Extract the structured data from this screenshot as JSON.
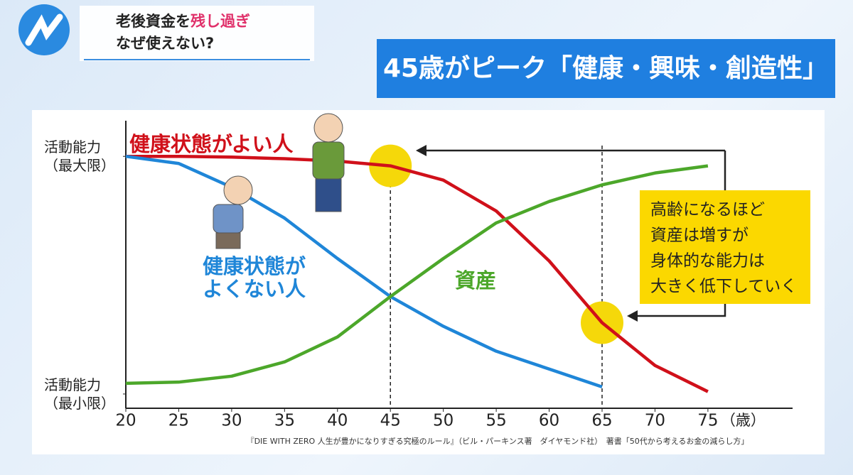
{
  "header": {
    "title_parts": [
      "老後資金を",
      "残し過ぎ"
    ],
    "title_line2": "なぜ使えない?"
  },
  "chart_data": {
    "type": "line",
    "title": "45歳がピーク「健康・興味・創造性」",
    "x": [
      20,
      25,
      30,
      35,
      40,
      45,
      50,
      55,
      60,
      65,
      70,
      75
    ],
    "xlim": [
      20,
      83
    ],
    "xticks": [
      20,
      25,
      30,
      35,
      40,
      45,
      50,
      55,
      60,
      65,
      70,
      75
    ],
    "x_unit": "（歳）",
    "ylim": [
      -6,
      115
    ],
    "yticks": [
      {
        "value": 0,
        "label": "活動能力（最小限）"
      },
      {
        "value": 100,
        "label": "活動能力（最大限）"
      }
    ],
    "series": [
      {
        "name": "健康状態がよい人",
        "color": "#d0101a",
        "values": [
          100,
          100,
          99.7,
          99,
          98,
          96,
          90,
          77,
          56,
          30,
          12,
          1
        ]
      },
      {
        "name": "健康状態がよくない人",
        "color": "#1f86d8",
        "values": [
          100,
          97,
          87,
          74,
          57,
          41,
          28.5,
          18,
          10.5,
          3,
          null,
          null
        ]
      },
      {
        "name": "資産",
        "color": "#4ca72a",
        "values": [
          4.5,
          5,
          7.5,
          13.5,
          24,
          41,
          57,
          72,
          81,
          88,
          93,
          96
        ]
      }
    ],
    "vlines": [
      45,
      65
    ],
    "highlights": [
      {
        "x": 45,
        "y": 96
      },
      {
        "x": 65,
        "y": 30
      }
    ],
    "highlight_color": "#f5d80a",
    "callout": [
      "高齢になるほど",
      "資産は増すが",
      "身体的な能力は",
      "大きく低下していく"
    ],
    "source": "『DIE WITH ZERO 人生が豊かになりすぎる究極のルール』（ビル・パーキンス著　ダイヤモンド社）　著書「50代から考えるお金の減らし方」"
  }
}
